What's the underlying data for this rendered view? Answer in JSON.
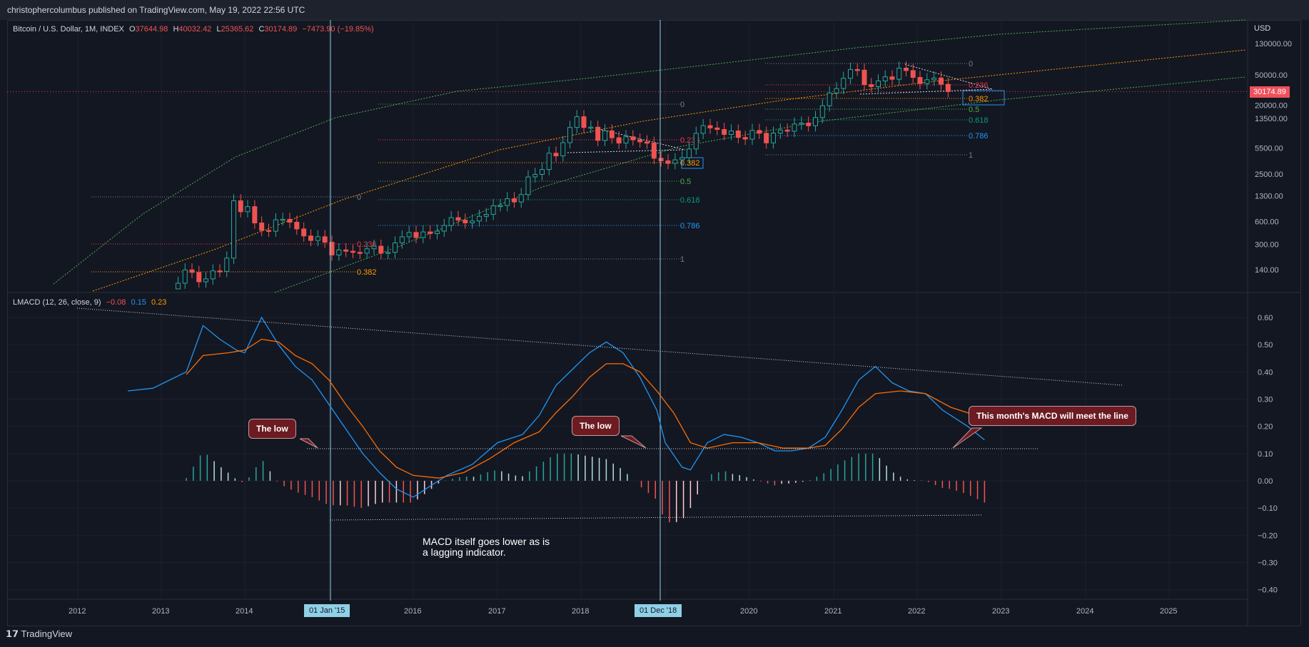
{
  "header": {
    "published": "christophercolumbus published on TradingView.com, May 19, 2022 22:56 UTC"
  },
  "footer": {
    "brand": "TradingView"
  },
  "price_legend": {
    "symbol": "Bitcoin / U.S. Dollar, 1M, INDEX",
    "o_label": "O",
    "o": "37644.98",
    "h_label": "H",
    "h": "40032.42",
    "l_label": "L",
    "l": "25365.62",
    "c_label": "C",
    "c": "30174.89",
    "change": "−7473.90 (−19.85%)"
  },
  "macd_legend": {
    "name": "LMACD (12, 26, close, 9)",
    "v1": "−0.08",
    "v2": "0.15",
    "v3": "0.23"
  },
  "currency": "USD",
  "last_price_tag": "30174.89",
  "date_tags": [
    "01 Jan '15",
    "01 Dec '18"
  ],
  "callouts": {
    "low1": "The low",
    "low2": "The low",
    "month": "This month's MACD will meet the line"
  },
  "note": {
    "line1": "MACD itself goes lower as is",
    "line2": "a lagging indicator."
  },
  "colors": {
    "background": "#131722",
    "up": "#26a69a",
    "down": "#ef5350",
    "macd": "#2196f3",
    "signal": "#ff6d00",
    "vline": "#8fd0e6"
  },
  "chart_data": [
    {
      "type": "candlestick",
      "title": "Bitcoin / U.S. Dollar, 1M, INDEX",
      "y_scale": "log",
      "yticks": [
        "130000.00",
        "50000.00",
        "20000.00",
        "13500.00",
        "5500.00",
        "2500.00",
        "1300.00",
        "600.00",
        "300.00",
        "140.00"
      ],
      "xticks": [
        "2012",
        "2013",
        "2014",
        "2015",
        "2016",
        "2017",
        "2018",
        "2019",
        "2020",
        "2021",
        "2022",
        "2023",
        "2024",
        "2025"
      ],
      "fib_labels": [
        {
          "set": "2013",
          "levels": [
            "0",
            "0.236",
            "0.382"
          ]
        },
        {
          "set": "2017",
          "levels": [
            "0",
            "0.236",
            "0.382",
            "0.5",
            "0.618",
            "0.786",
            "1"
          ]
        },
        {
          "set": "2021",
          "levels": [
            "0",
            "0.236",
            "0.382",
            "0.5",
            "0.618",
            "0.786",
            "1"
          ]
        }
      ],
      "monthly_close": [
        [
          "2013-01",
          20
        ],
        [
          "2013-02",
          33
        ],
        [
          "2013-03",
          93
        ],
        [
          "2013-04",
          139
        ],
        [
          "2013-05",
          129
        ],
        [
          "2013-06",
          97
        ],
        [
          "2013-07",
          106
        ],
        [
          "2013-08",
          135
        ],
        [
          "2013-09",
          133
        ],
        [
          "2013-10",
          198
        ],
        [
          "2013-11",
          1120
        ],
        [
          "2013-12",
          805
        ],
        [
          "2014-01",
          938
        ],
        [
          "2014-02",
          573
        ],
        [
          "2014-03",
          458
        ],
        [
          "2014-04",
          447
        ],
        [
          "2014-05",
          630
        ],
        [
          "2014-06",
          640
        ],
        [
          "2014-07",
          586
        ],
        [
          "2014-08",
          478
        ],
        [
          "2014-09",
          387
        ],
        [
          "2014-10",
          338
        ],
        [
          "2014-11",
          378
        ],
        [
          "2014-12",
          320
        ],
        [
          "2015-01",
          218
        ],
        [
          "2015-02",
          254
        ],
        [
          "2015-03",
          244
        ],
        [
          "2015-04",
          236
        ],
        [
          "2015-05",
          230
        ],
        [
          "2015-06",
          263
        ],
        [
          "2015-07",
          284
        ],
        [
          "2015-08",
          230
        ],
        [
          "2015-09",
          236
        ],
        [
          "2015-10",
          314
        ],
        [
          "2015-11",
          377
        ],
        [
          "2015-12",
          430
        ],
        [
          "2016-01",
          369
        ],
        [
          "2016-02",
          437
        ],
        [
          "2016-03",
          416
        ],
        [
          "2016-04",
          448
        ],
        [
          "2016-05",
          531
        ],
        [
          "2016-06",
          673
        ],
        [
          "2016-07",
          624
        ],
        [
          "2016-08",
          574
        ],
        [
          "2016-09",
          608
        ],
        [
          "2016-10",
          700
        ],
        [
          "2016-11",
          742
        ],
        [
          "2016-12",
          963
        ],
        [
          "2017-01",
          970
        ],
        [
          "2017-02",
          1190
        ],
        [
          "2017-03",
          1080
        ],
        [
          "2017-04",
          1348
        ],
        [
          "2017-05",
          2300
        ],
        [
          "2017-06",
          2480
        ],
        [
          "2017-07",
          2875
        ],
        [
          "2017-08",
          4703
        ],
        [
          "2017-09",
          4338
        ],
        [
          "2017-10",
          6468
        ],
        [
          "2017-11",
          10233
        ],
        [
          "2017-12",
          14156
        ],
        [
          "2018-01",
          10221
        ],
        [
          "2018-02",
          10326
        ],
        [
          "2018-03",
          6926
        ],
        [
          "2018-04",
          9240
        ],
        [
          "2018-05",
          7495
        ],
        [
          "2018-06",
          6391
        ],
        [
          "2018-07",
          7730
        ],
        [
          "2018-08",
          7037
        ],
        [
          "2018-09",
          6625
        ],
        [
          "2018-10",
          6371
        ],
        [
          "2018-11",
          4041
        ],
        [
          "2018-12",
          3742
        ],
        [
          "2019-01",
          3457
        ],
        [
          "2019-02",
          3854
        ],
        [
          "2019-03",
          4105
        ],
        [
          "2019-04",
          5350
        ],
        [
          "2019-05",
          8574
        ],
        [
          "2019-06",
          10817
        ],
        [
          "2019-07",
          10085
        ],
        [
          "2019-08",
          9630
        ],
        [
          "2019-09",
          8293
        ],
        [
          "2019-10",
          9199
        ],
        [
          "2019-11",
          7569
        ],
        [
          "2019-12",
          7193
        ],
        [
          "2020-01",
          9350
        ],
        [
          "2020-02",
          8599
        ],
        [
          "2020-03",
          6424
        ],
        [
          "2020-04",
          8629
        ],
        [
          "2020-05",
          9454
        ],
        [
          "2020-06",
          9138
        ],
        [
          "2020-07",
          11351
        ],
        [
          "2020-08",
          11680
        ],
        [
          "2020-09",
          10785
        ],
        [
          "2020-10",
          13805
        ],
        [
          "2020-11",
          19713
        ],
        [
          "2020-12",
          28990
        ],
        [
          "2021-01",
          33114
        ],
        [
          "2021-02",
          45137
        ],
        [
          "2021-03",
          58918
        ],
        [
          "2021-04",
          57750
        ],
        [
          "2021-05",
          37332
        ],
        [
          "2021-06",
          35041
        ],
        [
          "2021-07",
          41626
        ],
        [
          "2021-08",
          47166
        ],
        [
          "2021-09",
          43791
        ],
        [
          "2021-10",
          61318
        ],
        [
          "2021-11",
          57005
        ],
        [
          "2021-12",
          46306
        ],
        [
          "2022-01",
          38483
        ],
        [
          "2022-02",
          43194
        ],
        [
          "2022-03",
          45538
        ],
        [
          "2022-04",
          37645
        ],
        [
          "2022-05",
          30175
        ]
      ]
    },
    {
      "type": "line",
      "title": "LMACD (12, 26, close, 9)",
      "yticks": [
        "0.60",
        "0.50",
        "0.40",
        "0.30",
        "0.20",
        "0.10",
        "0.00",
        "−0.10",
        "−0.20",
        "−0.30",
        "−0.40"
      ],
      "ylim": [
        -0.42,
        0.62
      ],
      "series": [
        {
          "name": "MACD",
          "color": "#2196f3",
          "points": [
            [
              2012.6,
              0.33
            ],
            [
              2012.9,
              0.34
            ],
            [
              2013.3,
              0.4
            ],
            [
              2013.5,
              0.57
            ],
            [
              2013.7,
              0.52
            ],
            [
              2013.9,
              0.48
            ],
            [
              2014.0,
              0.47
            ],
            [
              2014.2,
              0.6
            ],
            [
              2014.4,
              0.5
            ],
            [
              2014.6,
              0.42
            ],
            [
              2014.8,
              0.37
            ],
            [
              2015.0,
              0.28
            ],
            [
              2015.2,
              0.19
            ],
            [
              2015.4,
              0.1
            ],
            [
              2015.6,
              0.03
            ],
            [
              2015.8,
              -0.03
            ],
            [
              2016.0,
              -0.06
            ],
            [
              2016.2,
              -0.02
            ],
            [
              2016.4,
              0.02
            ],
            [
              2016.7,
              0.06
            ],
            [
              2017.0,
              0.14
            ],
            [
              2017.3,
              0.17
            ],
            [
              2017.5,
              0.24
            ],
            [
              2017.7,
              0.35
            ],
            [
              2017.9,
              0.41
            ],
            [
              2018.1,
              0.47
            ],
            [
              2018.3,
              0.51
            ],
            [
              2018.5,
              0.47
            ],
            [
              2018.7,
              0.38
            ],
            [
              2018.9,
              0.26
            ],
            [
              2019.0,
              0.14
            ],
            [
              2019.2,
              0.05
            ],
            [
              2019.3,
              0.04
            ],
            [
              2019.5,
              0.14
            ],
            [
              2019.7,
              0.17
            ],
            [
              2019.9,
              0.16
            ],
            [
              2020.1,
              0.14
            ],
            [
              2020.3,
              0.11
            ],
            [
              2020.5,
              0.11
            ],
            [
              2020.7,
              0.12
            ],
            [
              2020.9,
              0.16
            ],
            [
              2021.1,
              0.26
            ],
            [
              2021.3,
              0.37
            ],
            [
              2021.5,
              0.42
            ],
            [
              2021.7,
              0.36
            ],
            [
              2021.9,
              0.33
            ],
            [
              2022.1,
              0.32
            ],
            [
              2022.3,
              0.26
            ],
            [
              2022.6,
              0.2
            ],
            [
              2022.8,
              0.15
            ]
          ]
        },
        {
          "name": "Signal",
          "color": "#ff6d00",
          "points": [
            [
              2013.3,
              0.39
            ],
            [
              2013.5,
              0.46
            ],
            [
              2013.8,
              0.47
            ],
            [
              2014.0,
              0.48
            ],
            [
              2014.2,
              0.52
            ],
            [
              2014.4,
              0.51
            ],
            [
              2014.6,
              0.46
            ],
            [
              2014.8,
              0.43
            ],
            [
              2015.0,
              0.37
            ],
            [
              2015.2,
              0.28
            ],
            [
              2015.4,
              0.2
            ],
            [
              2015.6,
              0.11
            ],
            [
              2015.8,
              0.05
            ],
            [
              2016.0,
              0.02
            ],
            [
              2016.3,
              0.01
            ],
            [
              2016.6,
              0.03
            ],
            [
              2016.9,
              0.08
            ],
            [
              2017.2,
              0.14
            ],
            [
              2017.5,
              0.18
            ],
            [
              2017.7,
              0.25
            ],
            [
              2017.9,
              0.31
            ],
            [
              2018.1,
              0.38
            ],
            [
              2018.3,
              0.43
            ],
            [
              2018.5,
              0.43
            ],
            [
              2018.7,
              0.4
            ],
            [
              2018.9,
              0.33
            ],
            [
              2019.1,
              0.25
            ],
            [
              2019.3,
              0.14
            ],
            [
              2019.5,
              0.12
            ],
            [
              2019.8,
              0.14
            ],
            [
              2020.1,
              0.14
            ],
            [
              2020.4,
              0.12
            ],
            [
              2020.7,
              0.12
            ],
            [
              2020.9,
              0.13
            ],
            [
              2021.1,
              0.19
            ],
            [
              2021.3,
              0.27
            ],
            [
              2021.5,
              0.32
            ],
            [
              2021.8,
              0.33
            ],
            [
              2022.1,
              0.32
            ],
            [
              2022.4,
              0.27
            ],
            [
              2022.8,
              0.23
            ]
          ]
        }
      ]
    }
  ]
}
